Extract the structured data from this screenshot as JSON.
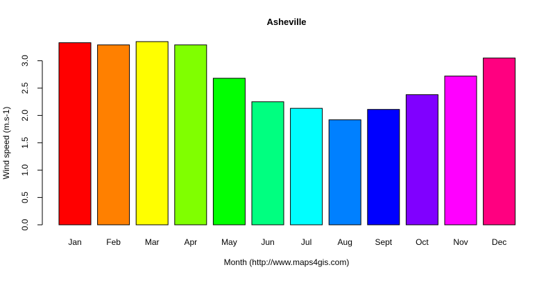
{
  "chart_data": {
    "type": "bar",
    "title": "Asheville",
    "xlabel": "Month (http://www.maps4gis.com)",
    "ylabel": "Wind speed (m.s-1)",
    "categories": [
      "Jan",
      "Feb",
      "Mar",
      "Apr",
      "May",
      "Jun",
      "Jul",
      "Aug",
      "Sept",
      "Oct",
      "Nov",
      "Dec"
    ],
    "values": [
      3.33,
      3.29,
      3.35,
      3.29,
      2.68,
      2.25,
      2.13,
      1.92,
      2.11,
      2.38,
      2.72,
      3.05
    ],
    "colors": [
      "#FF0000",
      "#FF8000",
      "#FFFF00",
      "#80FF00",
      "#00FF00",
      "#00FF80",
      "#00FFFF",
      "#0080FF",
      "#0000FF",
      "#8000FF",
      "#FF00FF",
      "#FF0080"
    ],
    "ylim": [
      0,
      3.35
    ],
    "yticks": [
      "0.0",
      "0.5",
      "1.0",
      "1.5",
      "2.0",
      "2.5",
      "3.0"
    ],
    "grid": false,
    "legend": "none"
  }
}
